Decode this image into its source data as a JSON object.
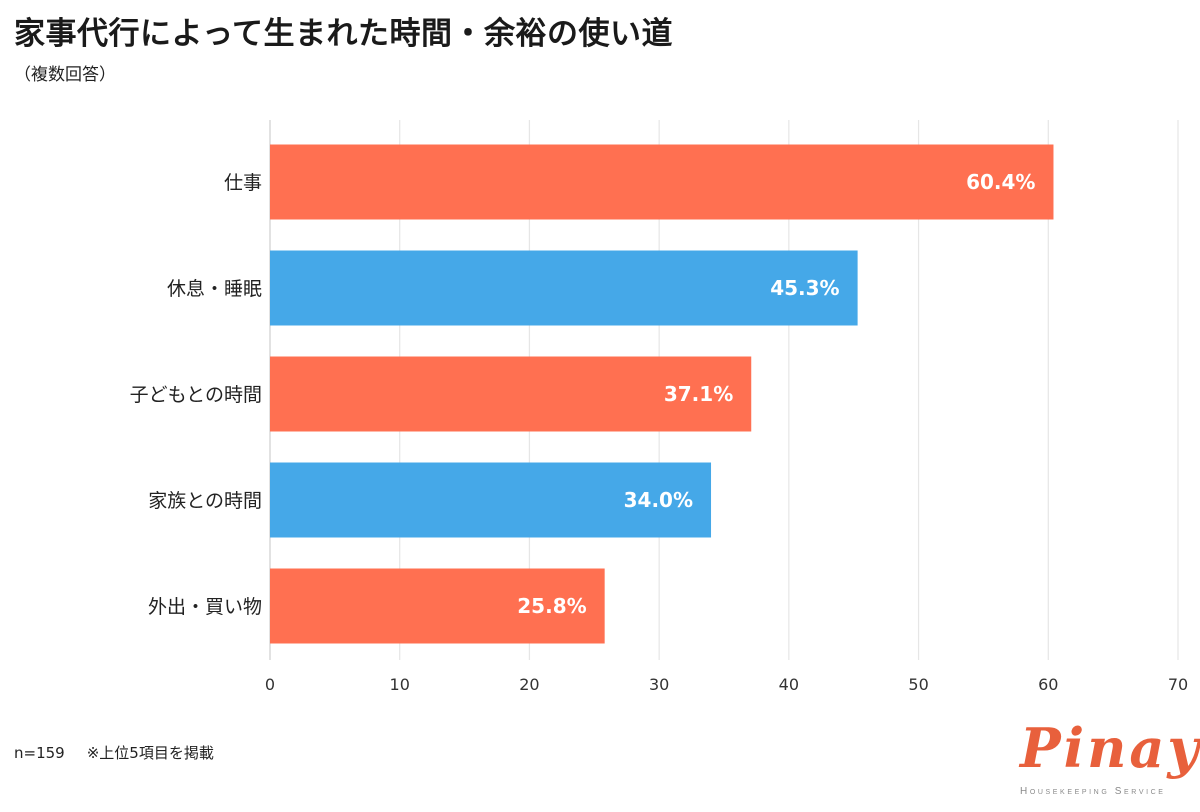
{
  "header": {
    "title": "家事代行によって生まれた時間・余裕の使い道",
    "subtitle": "（複数回答）"
  },
  "footnote": {
    "sample": "n=159",
    "note": "※上位5項目を掲載"
  },
  "logo": {
    "name": "Pinay",
    "tagline": "Housekeeping Service",
    "color": "#e8603c"
  },
  "chart_data": {
    "type": "bar",
    "orientation": "horizontal",
    "categories": [
      "仕事",
      "休息・睡眠",
      "子どもとの時間",
      "家族との時間",
      "外出・買い物"
    ],
    "values": [
      60.4,
      45.3,
      37.1,
      34.0,
      25.8
    ],
    "value_labels": [
      "60.4%",
      "45.3%",
      "37.1%",
      "34.0%",
      "25.8%"
    ],
    "bar_colors": [
      "#ff7051",
      "#45a8e8",
      "#ff7051",
      "#45a8e8",
      "#ff7051"
    ],
    "xlim": [
      0,
      70
    ],
    "x_ticks": [
      0,
      10,
      20,
      30,
      40,
      50,
      60,
      70
    ],
    "grid": true,
    "legend": "none",
    "xlabel": "",
    "ylabel": ""
  }
}
